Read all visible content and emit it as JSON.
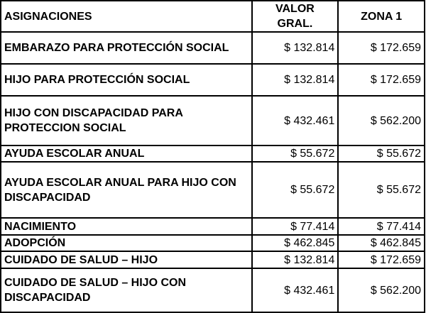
{
  "headers": [
    "ASIGNACIONES",
    "VALOR GRAL.",
    "ZONA 1"
  ],
  "rows": [
    {
      "name": "EMBARAZO PARA PROTECCIÓN SOCIAL",
      "valor_gral": "$ 132.814",
      "zona_1": "$ 172.659"
    },
    {
      "name": "HIJO PARA PROTECCIÓN SOCIAL",
      "valor_gral": "$ 132.814",
      "zona_1": "$ 172.659"
    },
    {
      "name": "HIJO CON DISCAPACIDAD PARA PROTECCION SOCIAL",
      "valor_gral": "$ 432.461",
      "zona_1": "$ 562.200"
    },
    {
      "name": "AYUDA ESCOLAR ANUAL",
      "valor_gral": "$ 55.672",
      "zona_1": "$ 55.672"
    },
    {
      "name": "AYUDA ESCOLAR ANUAL PARA HIJO CON DISCAPACIDAD",
      "valor_gral": "$ 55.672",
      "zona_1": "$ 55.672"
    },
    {
      "name": "NACIMIENTO",
      "valor_gral": "$ 77.414",
      "zona_1": "$ 77.414"
    },
    {
      "name": "ADOPCIÓN",
      "valor_gral": "$ 462.845",
      "zona_1": "$ 462.845"
    },
    {
      "name": "CUIDADO DE SALUD – HIJO",
      "valor_gral": "$ 132.814",
      "zona_1": "$ 172.659"
    },
    {
      "name": "CUIDADO DE SALUD – HIJO CON DISCAPACIDAD",
      "valor_gral": "$ 432.461",
      "zona_1": "$ 562.200"
    }
  ]
}
